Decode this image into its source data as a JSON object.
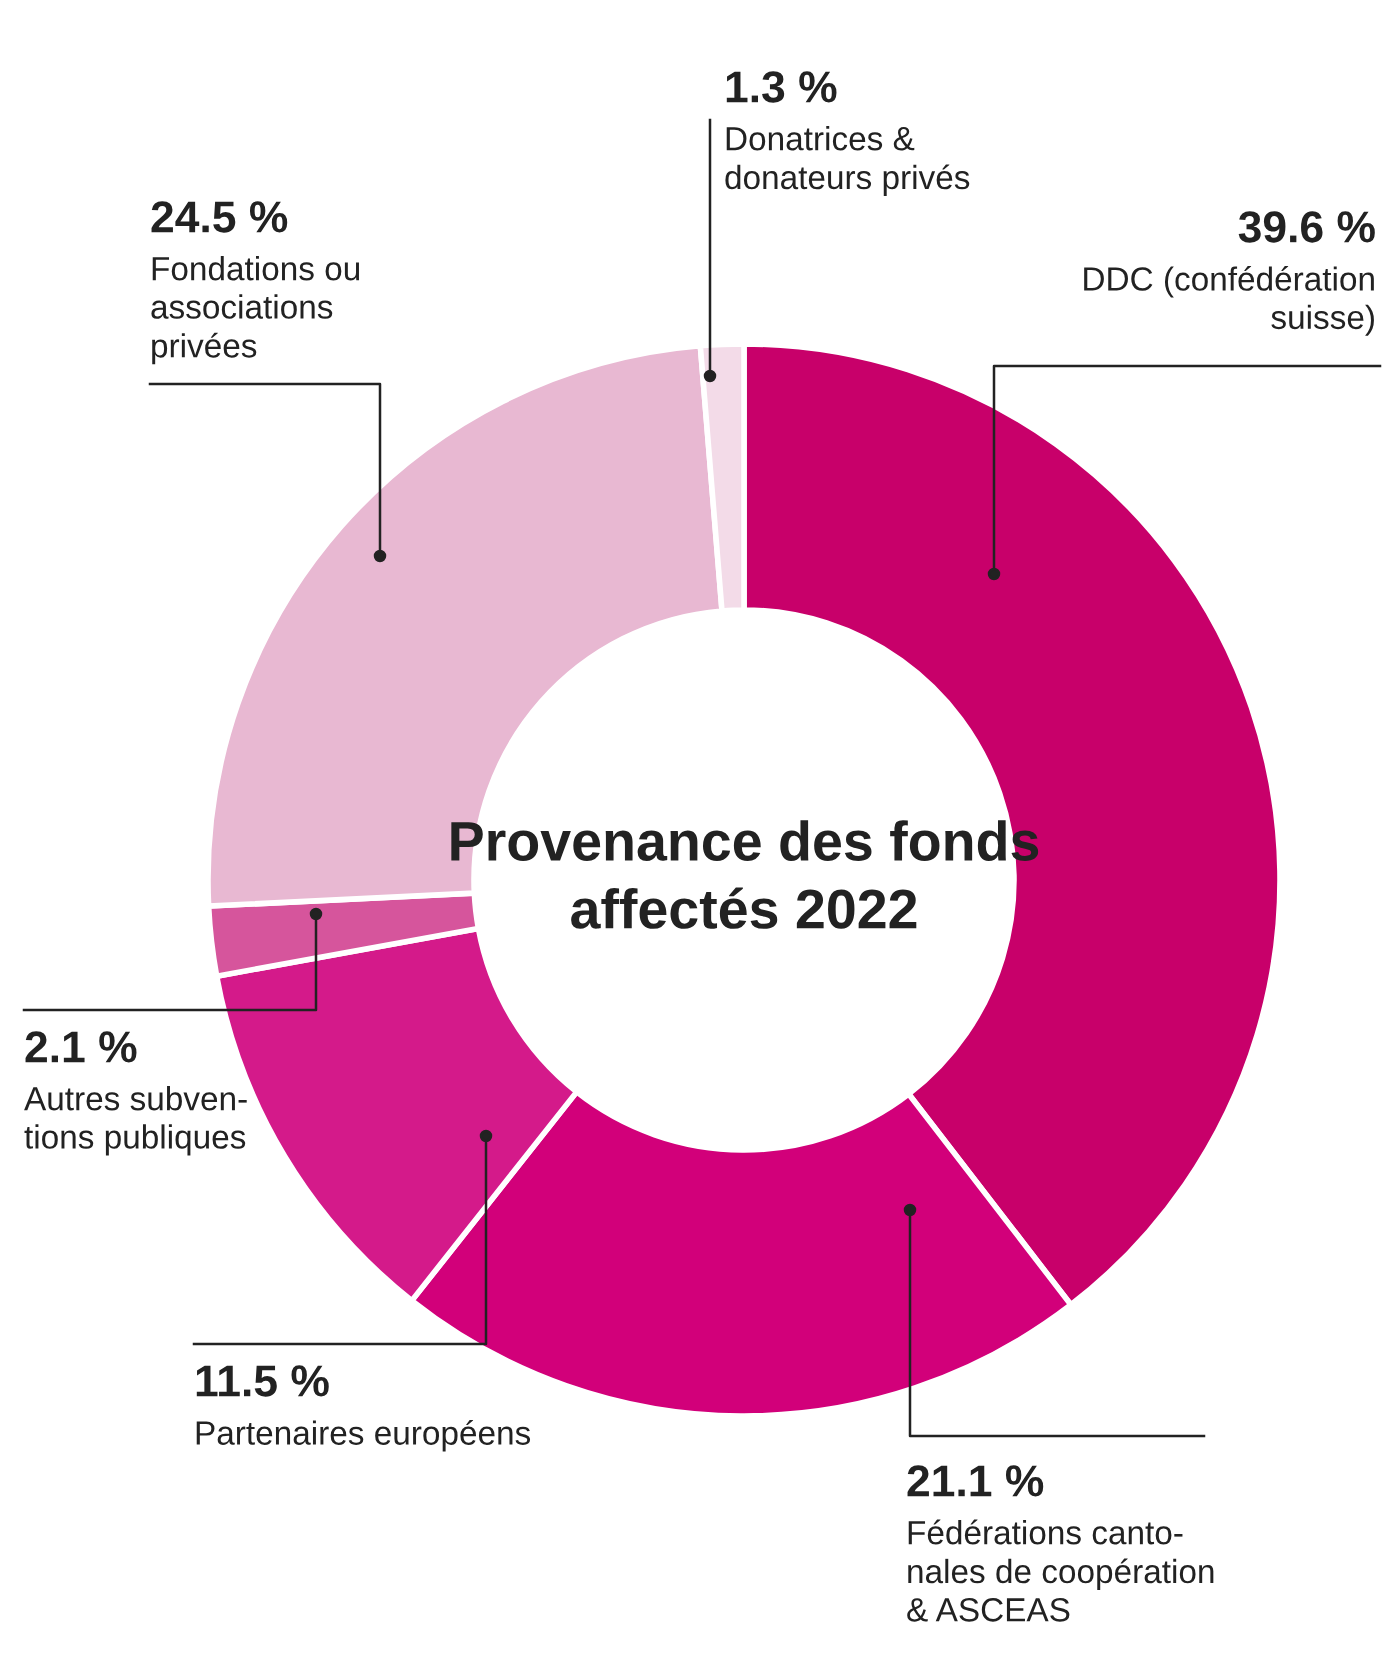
{
  "chart_data": {
    "type": "donut",
    "title": "Provenance des fonds affectés 2022",
    "categories": [
      "DDC (confédération\nsuisse)",
      "Fédérations canto-\nnales de coopération\n& ASCEAS",
      "Partenaires européens",
      "Autres subven-\ntions publiques",
      "Fondations ou\nassociations\nprivées",
      "Donatrices &\ndonateurs privés"
    ],
    "values": [
      39.6,
      21.1,
      11.5,
      2.1,
      24.5,
      1.3
    ],
    "value_labels": [
      "39.6 %",
      "21.1 %",
      "11.5 %",
      "2.1 %",
      "24.5 %",
      "1.3 %"
    ],
    "colors": [
      "#c8006a",
      "#d2007a",
      "#d41a8a",
      "#d6559c",
      "#e8b8d2",
      "#f3dbe8"
    ],
    "legend": false
  }
}
